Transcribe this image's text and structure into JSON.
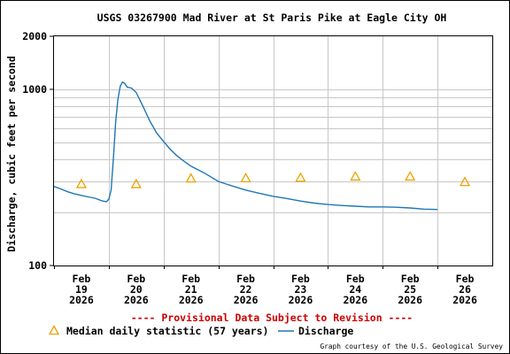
{
  "chart_data": {
    "type": "line",
    "title": "USGS 03267900 Mad River at St Paris Pike at Eagle City OH",
    "ylabel": "Discharge, cubic feet per second",
    "y_scale": "log",
    "ylim": [
      100,
      2000
    ],
    "y_tick_labels": [
      "100",
      "1000",
      "2000"
    ],
    "x_range": [
      "2026-02-19",
      "2026-02-27"
    ],
    "x_tick_labels": [
      {
        "month": "Feb",
        "day": "19",
        "year": "2026"
      },
      {
        "month": "Feb",
        "day": "20",
        "year": "2026"
      },
      {
        "month": "Feb",
        "day": "21",
        "year": "2026"
      },
      {
        "month": "Feb",
        "day": "22",
        "year": "2026"
      },
      {
        "month": "Feb",
        "day": "23",
        "year": "2026"
      },
      {
        "month": "Feb",
        "day": "24",
        "year": "2026"
      },
      {
        "month": "Feb",
        "day": "25",
        "year": "2026"
      },
      {
        "month": "Feb",
        "day": "26",
        "year": "2026"
      }
    ],
    "grid": true,
    "series": [
      {
        "name": "Discharge",
        "color": "#1f77b4",
        "points": [
          [
            "2026-02-19 00:00",
            281
          ],
          [
            "2026-02-19 03:00",
            272
          ],
          [
            "2026-02-19 06:00",
            262
          ],
          [
            "2026-02-19 09:00",
            255
          ],
          [
            "2026-02-19 12:00",
            250
          ],
          [
            "2026-02-19 15:00",
            245
          ],
          [
            "2026-02-19 18:00",
            241
          ],
          [
            "2026-02-19 21:00",
            233
          ],
          [
            "2026-02-19 23:00",
            230
          ],
          [
            "2026-02-20 00:00",
            238
          ],
          [
            "2026-02-20 01:00",
            268
          ],
          [
            "2026-02-20 02:00",
            400
          ],
          [
            "2026-02-20 03:00",
            650
          ],
          [
            "2026-02-20 04:00",
            880
          ],
          [
            "2026-02-20 05:00",
            1040
          ],
          [
            "2026-02-20 06:00",
            1100
          ],
          [
            "2026-02-20 07:00",
            1080
          ],
          [
            "2026-02-20 08:00",
            1030
          ],
          [
            "2026-02-20 10:00",
            1015
          ],
          [
            "2026-02-20 12:00",
            960
          ],
          [
            "2026-02-20 15:00",
            800
          ],
          [
            "2026-02-20 18:00",
            660
          ],
          [
            "2026-02-20 21:00",
            565
          ],
          [
            "2026-02-21 00:00",
            505
          ],
          [
            "2026-02-21 03:00",
            455
          ],
          [
            "2026-02-21 06:00",
            418
          ],
          [
            "2026-02-21 09:00",
            390
          ],
          [
            "2026-02-21 12:00",
            366
          ],
          [
            "2026-02-21 18:00",
            334
          ],
          [
            "2026-02-22 00:00",
            300
          ],
          [
            "2026-02-22 06:00",
            283
          ],
          [
            "2026-02-22 12:00",
            268
          ],
          [
            "2026-02-22 18:00",
            257
          ],
          [
            "2026-02-23 00:00",
            247
          ],
          [
            "2026-02-23 06:00",
            240
          ],
          [
            "2026-02-23 12:00",
            232
          ],
          [
            "2026-02-23 18:00",
            226
          ],
          [
            "2026-02-24 00:00",
            222
          ],
          [
            "2026-02-24 06:00",
            219
          ],
          [
            "2026-02-24 12:00",
            217
          ],
          [
            "2026-02-24 18:00",
            215
          ],
          [
            "2026-02-25 00:00",
            215
          ],
          [
            "2026-02-25 06:00",
            214
          ],
          [
            "2026-02-25 12:00",
            212
          ],
          [
            "2026-02-25 18:00",
            209
          ],
          [
            "2026-02-26 00:00",
            208
          ]
        ]
      },
      {
        "name": "Median daily statistic (57 years)",
        "color": "#f0a000",
        "marker": "triangle",
        "points": [
          [
            "2026-02-19 00:00",
            290
          ],
          [
            "2026-02-20 00:00",
            290
          ],
          [
            "2026-02-21 00:00",
            312
          ],
          [
            "2026-02-22 00:00",
            313
          ],
          [
            "2026-02-23 00:00",
            315
          ],
          [
            "2026-02-24 00:00",
            320
          ],
          [
            "2026-02-25 00:00",
            320
          ],
          [
            "2026-02-26 00:00",
            298
          ]
        ]
      }
    ],
    "legend": [
      {
        "label": "Median daily statistic (57 years)",
        "symbol": "triangle"
      },
      {
        "label": "Discharge",
        "symbol": "line"
      }
    ]
  },
  "notice": "---- Provisional Data Subject to Revision ----",
  "credit": "Graph courtesy of the U.S. Geological Survey",
  "colors": {
    "discharge": "#1f77b4",
    "median": "#f0a000",
    "notice": "#cc0000",
    "grid": "#c8c8c8",
    "axis": "#000000"
  }
}
